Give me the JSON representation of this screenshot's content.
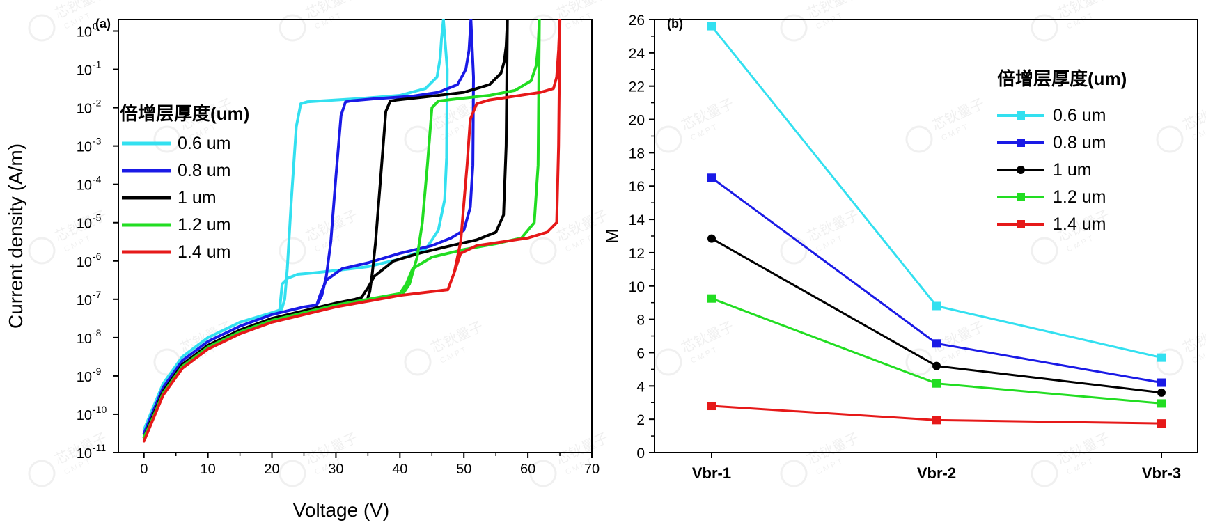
{
  "chart_data": [
    {
      "panel_label": "(a)",
      "type": "line",
      "xlabel": "Voltage (V)",
      "ylabel": "Current density (A/m)",
      "xlim": [
        -4,
        70
      ],
      "ylim_log10": [
        -11,
        0.3
      ],
      "yscale": "log",
      "x_ticks": [
        "0",
        "10",
        "20",
        "30",
        "40",
        "50",
        "60",
        "70"
      ],
      "y_ticks_exponent": [
        "0",
        "-1",
        "-2",
        "-3",
        "-4",
        "-5",
        "-6",
        "-7",
        "-8",
        "-9",
        "-10",
        "-11"
      ],
      "y_tick_base": "10",
      "legend_title": "倍增层厚度(um)",
      "legend_position": "left",
      "series": [
        {
          "name": "0.6 um",
          "color": "#33e0f0",
          "x": [
            0,
            1,
            3,
            6,
            10,
            15,
            20,
            21.2,
            21.6,
            22.5,
            24,
            26,
            30,
            35,
            40,
            44,
            46,
            47,
            47.3,
            47.4,
            46.8,
            46.5,
            46.3,
            45.8,
            44,
            40,
            34,
            28,
            25.5,
            24.5,
            23.8,
            23,
            22.4,
            22,
            21.5
          ],
          "y": [
            -10.4,
            -10,
            -9.2,
            -8.5,
            -8,
            -7.6,
            -7.35,
            -7.28,
            -6.6,
            -6.45,
            -6.35,
            -6.32,
            -6.25,
            -6.15,
            -5.95,
            -5.7,
            -5.2,
            -4.4,
            -3.3,
            -1,
            0.3,
            -0.2,
            -0.7,
            -1.2,
            -1.5,
            -1.68,
            -1.76,
            -1.82,
            -1.85,
            -1.9,
            -2.5,
            -4.5,
            -6.2,
            -7,
            -7.28
          ]
        },
        {
          "name": "0.8 um",
          "color": "#1a1ae6",
          "x": [
            0,
            1,
            3,
            6,
            10,
            15,
            20,
            25,
            27,
            27.5,
            28.5,
            31,
            35,
            40,
            45,
            48,
            50,
            51,
            51.4,
            51.5,
            51.1,
            50.8,
            50.3,
            49,
            46,
            42,
            36,
            32.5,
            31.5,
            30.8,
            30,
            29.2,
            28.5,
            27.8,
            27
          ],
          "y": [
            -10.5,
            -10.1,
            -9.3,
            -8.6,
            -8.1,
            -7.7,
            -7.4,
            -7.2,
            -7.15,
            -6.9,
            -6.5,
            -6.2,
            -6.05,
            -5.8,
            -5.6,
            -5.4,
            -5.2,
            -4.6,
            -3.5,
            -1.2,
            0.3,
            -0.5,
            -1.0,
            -1.4,
            -1.6,
            -1.7,
            -1.77,
            -1.82,
            -1.85,
            -2.2,
            -3.8,
            -5.5,
            -6.4,
            -6.9,
            -7.15
          ]
        },
        {
          "name": "1 um",
          "color": "#000000",
          "x": [
            0,
            1,
            3,
            6,
            10,
            15,
            20,
            25,
            30,
            33,
            34,
            35,
            36,
            39,
            43,
            48,
            52,
            55,
            56.2,
            56.6,
            56.8,
            56.6,
            56.3,
            55.8,
            54,
            50,
            44,
            39.5,
            38.5,
            37.8,
            37,
            36.2,
            35.7,
            35.3,
            35
          ],
          "y": [
            -10.6,
            -10.2,
            -9.4,
            -8.7,
            -8.2,
            -7.8,
            -7.5,
            -7.3,
            -7.1,
            -7,
            -6.95,
            -6.7,
            -6.4,
            -6.0,
            -5.8,
            -5.6,
            -5.45,
            -5.25,
            -4.8,
            -3,
            0.3,
            -0.4,
            -0.8,
            -1.1,
            -1.4,
            -1.6,
            -1.72,
            -1.8,
            -1.83,
            -2.1,
            -3.8,
            -5.5,
            -6.3,
            -6.8,
            -6.95
          ]
        },
        {
          "name": "1.2 um",
          "color": "#22dd22",
          "x": [
            0,
            1,
            3,
            6,
            10,
            15,
            20,
            25,
            30,
            35,
            40,
            41,
            42,
            45,
            50,
            55,
            59,
            61,
            61.6,
            61.8,
            61.6,
            61.3,
            60.5,
            58,
            54,
            49,
            46,
            45,
            44.3,
            43.5,
            42.7,
            42,
            41.5,
            40.5
          ],
          "y": [
            -10.6,
            -10.25,
            -9.45,
            -8.75,
            -8.25,
            -7.85,
            -7.55,
            -7.35,
            -7.15,
            -7.0,
            -6.85,
            -6.6,
            -6.2,
            -5.9,
            -5.7,
            -5.55,
            -5.4,
            -5.0,
            -3.5,
            0.3,
            -0.4,
            -0.9,
            -1.3,
            -1.55,
            -1.68,
            -1.77,
            -1.83,
            -2.0,
            -3.5,
            -5.0,
            -5.9,
            -6.3,
            -6.6,
            -6.85
          ]
        },
        {
          "name": "1.4 um",
          "color": "#e61919",
          "x": [
            0,
            1,
            3,
            6,
            10,
            15,
            20,
            25,
            30,
            35,
            40,
            45,
            47.5,
            48.5,
            49.5,
            52,
            56,
            60,
            63,
            64.5,
            64.8,
            65,
            64.8,
            64.5,
            64,
            62,
            58,
            54,
            52,
            51,
            50.5,
            50,
            49.5,
            48.5,
            47.5
          ],
          "y": [
            -10.7,
            -10.3,
            -9.5,
            -8.8,
            -8.3,
            -7.9,
            -7.6,
            -7.4,
            -7.2,
            -7.05,
            -6.9,
            -6.8,
            -6.75,
            -6.3,
            -5.8,
            -5.6,
            -5.5,
            -5.4,
            -5.25,
            -5.0,
            -3.0,
            0.3,
            -0.5,
            -1.2,
            -1.5,
            -1.6,
            -1.7,
            -1.8,
            -1.9,
            -2.3,
            -3.5,
            -4.5,
            -5.5,
            -6.3,
            -6.75
          ]
        }
      ]
    },
    {
      "panel_label": "(b)",
      "type": "line",
      "xlabel": "",
      "ylabel": "M",
      "categories": [
        "Vbr-1",
        "Vbr-2",
        "Vbr-3"
      ],
      "ylim": [
        0,
        26
      ],
      "y_ticks": [
        "0",
        "2",
        "4",
        "6",
        "8",
        "10",
        "12",
        "14",
        "16",
        "18",
        "20",
        "22",
        "24",
        "26"
      ],
      "legend_title": "倍增层厚度(um)",
      "legend_position": "right",
      "series": [
        {
          "name": "0.6 um",
          "color": "#33e0f0",
          "marker": "square",
          "values": [
            25.6,
            8.8,
            5.7
          ]
        },
        {
          "name": "0.8 um",
          "color": "#1a1ae6",
          "marker": "square",
          "values": [
            16.5,
            6.55,
            4.2
          ]
        },
        {
          "name": "1 um",
          "color": "#000000",
          "marker": "circle",
          "values": [
            12.85,
            5.2,
            3.6
          ]
        },
        {
          "name": "1.2 um",
          "color": "#22dd22",
          "marker": "square",
          "values": [
            9.25,
            4.15,
            2.95
          ]
        },
        {
          "name": "1.4 um",
          "color": "#e61919",
          "marker": "square",
          "values": [
            2.8,
            1.95,
            1.75
          ]
        }
      ]
    }
  ],
  "watermark": {
    "text_cn": "芯钬量子",
    "text_en": "CMPT"
  }
}
